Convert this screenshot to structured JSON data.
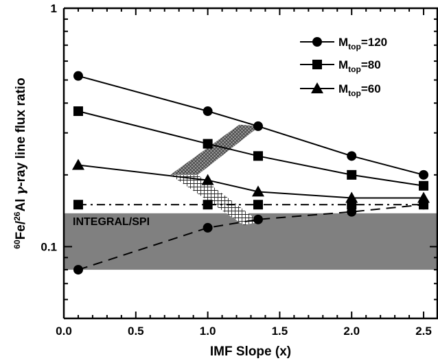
{
  "chart_data": {
    "type": "line",
    "xlabel": "IMF Slope (x)",
    "ylabel_parts": {
      "sup1": "60",
      "el1": "Fe/",
      "sup2": "26",
      "el2": "Al ",
      "gamma": "γ",
      "rest": "-ray line flux ratio"
    },
    "xlim": [
      0.0,
      2.6
    ],
    "ylim": [
      0.05,
      1.0
    ],
    "yscale": "log",
    "x_ticks": [
      {
        "value": 0.0,
        "label": "0.0"
      },
      {
        "value": 0.5,
        "label": "0.5"
      },
      {
        "value": 1.0,
        "label": "1.0"
      },
      {
        "value": 1.5,
        "label": "1.5"
      },
      {
        "value": 2.0,
        "label": "2.0"
      },
      {
        "value": 2.5,
        "label": "2.5"
      }
    ],
    "y_ticks": [
      {
        "value": 0.1,
        "label": "0.1"
      },
      {
        "value": 1.0,
        "label": "1"
      }
    ],
    "legend_position": "top-right",
    "series": [
      {
        "name_main": "M",
        "name_sub": "top",
        "name_val": "=120",
        "marker": "circle",
        "style": "solid",
        "x": [
          0.1,
          1.0,
          1.35,
          2.0,
          2.5
        ],
        "y": [
          0.52,
          0.37,
          0.32,
          0.24,
          0.2
        ]
      },
      {
        "name_main": "M",
        "name_sub": "top",
        "name_val": "=80",
        "marker": "square",
        "style": "solid",
        "x": [
          0.1,
          1.0,
          1.35,
          2.0,
          2.5
        ],
        "y": [
          0.37,
          0.27,
          0.24,
          0.2,
          0.18
        ]
      },
      {
        "name_main": "M",
        "name_sub": "top",
        "name_val": "=60",
        "marker": "triangle",
        "style": "solid",
        "x": [
          0.1,
          1.0,
          1.35,
          2.0,
          2.5
        ],
        "y": [
          0.22,
          0.19,
          0.17,
          0.16,
          0.16
        ]
      },
      {
        "marker": "square",
        "style": "dashdot",
        "x": [
          0.1,
          1.0,
          1.35,
          2.0,
          2.5
        ],
        "y": [
          0.15,
          0.15,
          0.15,
          0.15,
          0.15
        ]
      },
      {
        "marker": "circle",
        "style": "dashed",
        "x": [
          0.1,
          1.0,
          1.35,
          2.0,
          2.5
        ],
        "y": [
          0.08,
          0.12,
          0.13,
          0.14,
          0.15
        ]
      }
    ],
    "observation_band": {
      "label": "INTEGRAL/SPI",
      "y_low": 0.08,
      "y_high": 0.138,
      "color": "#808080"
    },
    "hatched_regions": [
      {
        "pattern": "crosshatch-dark",
        "polygon": [
          [
            0.74,
            0.2
          ],
          [
            1.22,
            0.325
          ],
          [
            1.36,
            0.32
          ],
          [
            0.93,
            0.2
          ]
        ]
      },
      {
        "pattern": "crosshatch-light",
        "polygon": [
          [
            0.74,
            0.2
          ],
          [
            0.93,
            0.2
          ],
          [
            1.36,
            0.127
          ],
          [
            1.25,
            0.123
          ]
        ]
      }
    ]
  }
}
